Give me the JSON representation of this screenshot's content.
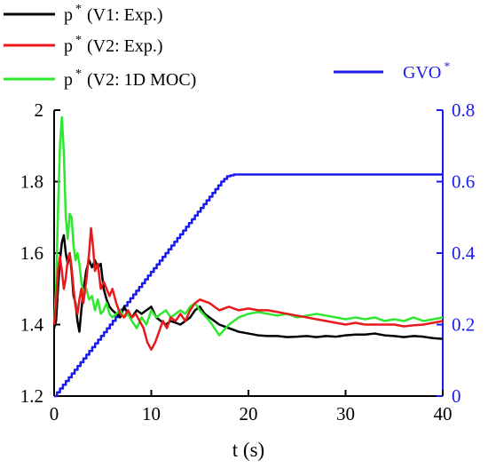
{
  "chart_data": {
    "type": "line",
    "title": "",
    "xlabel": "t (s)",
    "ylabel": "",
    "y2label": "",
    "xlim": [
      0,
      40
    ],
    "ylim": [
      1.2,
      2.0
    ],
    "y2lim": [
      0,
      0.8
    ],
    "x_ticks": [
      "0",
      "10",
      "20",
      "30",
      "40"
    ],
    "y_ticks": [
      "1.2",
      "1.4",
      "1.6",
      "1.8",
      "2"
    ],
    "y2_ticks": [
      "0",
      "0.2",
      "0.4",
      "0.6",
      "0.8"
    ],
    "grid": false,
    "legend_placement": "top",
    "colors": {
      "v1_exp": "#000000",
      "v2_exp": "#e8191b",
      "v2_moc": "#2ee82e",
      "gvo": "#1a1aee",
      "right_axis": "#1a1aee"
    },
    "series": [
      {
        "key": "v1_exp",
        "legend": {
          "base": "p",
          "sup": "*",
          "rest": "(V1: Exp.)"
        },
        "axis": "left",
        "x": [
          0,
          0.2,
          0.4,
          0.6,
          0.8,
          1.0,
          1.2,
          1.4,
          1.6,
          1.8,
          2.0,
          2.2,
          2.4,
          2.6,
          2.8,
          3.0,
          3.3,
          3.6,
          3.9,
          4.2,
          4.5,
          4.8,
          5.1,
          5.4,
          5.7,
          6.0,
          6.4,
          6.8,
          7.2,
          7.6,
          8.0,
          8.5,
          9.0,
          9.5,
          10.0,
          10.5,
          11.0,
          11.5,
          12.0,
          13.0,
          14.0,
          14.5,
          15.0,
          15.5,
          16.0,
          17.0,
          18.0,
          19.0,
          20.0,
          21.0,
          22.0,
          23.0,
          24.0,
          25.0,
          26.0,
          27.0,
          28.0,
          29.0,
          30.0,
          31.0,
          32.0,
          33.0,
          34.0,
          35.0,
          36.0,
          37.0,
          38.0,
          39.0,
          40.0
        ],
        "values": [
          1.39,
          1.41,
          1.5,
          1.58,
          1.63,
          1.65,
          1.6,
          1.57,
          1.6,
          1.55,
          1.48,
          1.46,
          1.41,
          1.38,
          1.44,
          1.49,
          1.55,
          1.58,
          1.56,
          1.58,
          1.56,
          1.57,
          1.5,
          1.47,
          1.45,
          1.44,
          1.43,
          1.42,
          1.45,
          1.43,
          1.42,
          1.44,
          1.43,
          1.44,
          1.45,
          1.42,
          1.41,
          1.4,
          1.41,
          1.4,
          1.42,
          1.44,
          1.45,
          1.43,
          1.42,
          1.4,
          1.39,
          1.38,
          1.375,
          1.37,
          1.368,
          1.368,
          1.365,
          1.366,
          1.368,
          1.365,
          1.368,
          1.366,
          1.37,
          1.372,
          1.372,
          1.375,
          1.37,
          1.368,
          1.365,
          1.368,
          1.366,
          1.362,
          1.36
        ]
      },
      {
        "key": "v2_exp",
        "legend": {
          "base": "p",
          "sup": "*",
          "rest": "(V2: Exp.)"
        },
        "axis": "left",
        "x": [
          0,
          0.2,
          0.4,
          0.6,
          0.8,
          1.0,
          1.2,
          1.4,
          1.6,
          1.8,
          2.0,
          2.2,
          2.4,
          2.6,
          2.8,
          3.0,
          3.3,
          3.6,
          3.8,
          4.0,
          4.2,
          4.5,
          4.8,
          5.1,
          5.4,
          5.7,
          6.0,
          6.4,
          6.8,
          7.2,
          7.6,
          8.0,
          8.4,
          8.8,
          9.2,
          9.6,
          10.0,
          10.4,
          10.8,
          11.2,
          11.6,
          12.0,
          12.5,
          13.0,
          13.5,
          14.0,
          14.5,
          15.0,
          16.0,
          17.0,
          18.0,
          19.0,
          20.0,
          21.0,
          22.0,
          23.0,
          24.0,
          25.0,
          26.0,
          27.0,
          28.0,
          29.0,
          30.0,
          31.0,
          32.0,
          33.0,
          34.0,
          35.0,
          36.0,
          37.0,
          38.0,
          39.0,
          40.0
        ],
        "values": [
          1.4,
          1.46,
          1.55,
          1.59,
          1.55,
          1.5,
          1.53,
          1.58,
          1.6,
          1.56,
          1.5,
          1.45,
          1.43,
          1.47,
          1.5,
          1.46,
          1.52,
          1.6,
          1.67,
          1.62,
          1.55,
          1.57,
          1.5,
          1.52,
          1.5,
          1.48,
          1.5,
          1.46,
          1.43,
          1.42,
          1.44,
          1.42,
          1.43,
          1.41,
          1.39,
          1.35,
          1.33,
          1.35,
          1.38,
          1.41,
          1.39,
          1.42,
          1.41,
          1.43,
          1.41,
          1.44,
          1.46,
          1.47,
          1.46,
          1.44,
          1.45,
          1.44,
          1.445,
          1.44,
          1.44,
          1.435,
          1.43,
          1.425,
          1.42,
          1.415,
          1.41,
          1.405,
          1.4,
          1.405,
          1.4,
          1.4,
          1.4,
          1.4,
          1.395,
          1.398,
          1.4,
          1.405,
          1.41
        ]
      },
      {
        "key": "v2_moc",
        "legend": {
          "base": "p",
          "sup": "*",
          "rest": "(V2: 1D MOC)"
        },
        "axis": "left",
        "x": [
          0,
          0.2,
          0.4,
          0.6,
          0.8,
          1.0,
          1.2,
          1.4,
          1.6,
          1.8,
          2.0,
          2.2,
          2.4,
          2.6,
          2.8,
          3.0,
          3.3,
          3.6,
          3.9,
          4.2,
          4.5,
          4.8,
          5.1,
          5.4,
          5.7,
          6.0,
          6.4,
          6.8,
          7.2,
          7.6,
          8.0,
          8.5,
          9.0,
          9.5,
          10.0,
          10.5,
          11.0,
          11.5,
          12.0,
          12.5,
          13.0,
          13.5,
          14.0,
          14.5,
          15.0,
          16.0,
          17.0,
          18.0,
          19.0,
          20.0,
          21.0,
          22.0,
          23.0,
          24.0,
          25.0,
          26.0,
          27.0,
          28.0,
          29.0,
          30.0,
          31.0,
          32.0,
          33.0,
          34.0,
          35.0,
          36.0,
          37.0,
          38.0,
          39.0,
          40.0
        ],
        "values": [
          1.4,
          1.5,
          1.72,
          1.9,
          1.98,
          1.88,
          1.7,
          1.64,
          1.71,
          1.7,
          1.62,
          1.58,
          1.6,
          1.57,
          1.52,
          1.49,
          1.5,
          1.47,
          1.48,
          1.44,
          1.47,
          1.43,
          1.44,
          1.46,
          1.43,
          1.42,
          1.43,
          1.44,
          1.42,
          1.43,
          1.41,
          1.39,
          1.42,
          1.4,
          1.44,
          1.42,
          1.43,
          1.44,
          1.42,
          1.43,
          1.44,
          1.43,
          1.45,
          1.46,
          1.44,
          1.41,
          1.37,
          1.4,
          1.42,
          1.43,
          1.435,
          1.43,
          1.425,
          1.43,
          1.42,
          1.425,
          1.43,
          1.425,
          1.42,
          1.415,
          1.42,
          1.415,
          1.42,
          1.41,
          1.415,
          1.41,
          1.42,
          1.41,
          1.415,
          1.42
        ]
      },
      {
        "key": "gvo",
        "legend": {
          "base": "GVO",
          "sup": "*",
          "rest": ""
        },
        "axis": "right",
        "x": [
          0,
          17.2,
          17.8,
          18.5,
          40
        ],
        "values": [
          0.0,
          0.6,
          0.615,
          0.62,
          0.62
        ]
      }
    ]
  }
}
